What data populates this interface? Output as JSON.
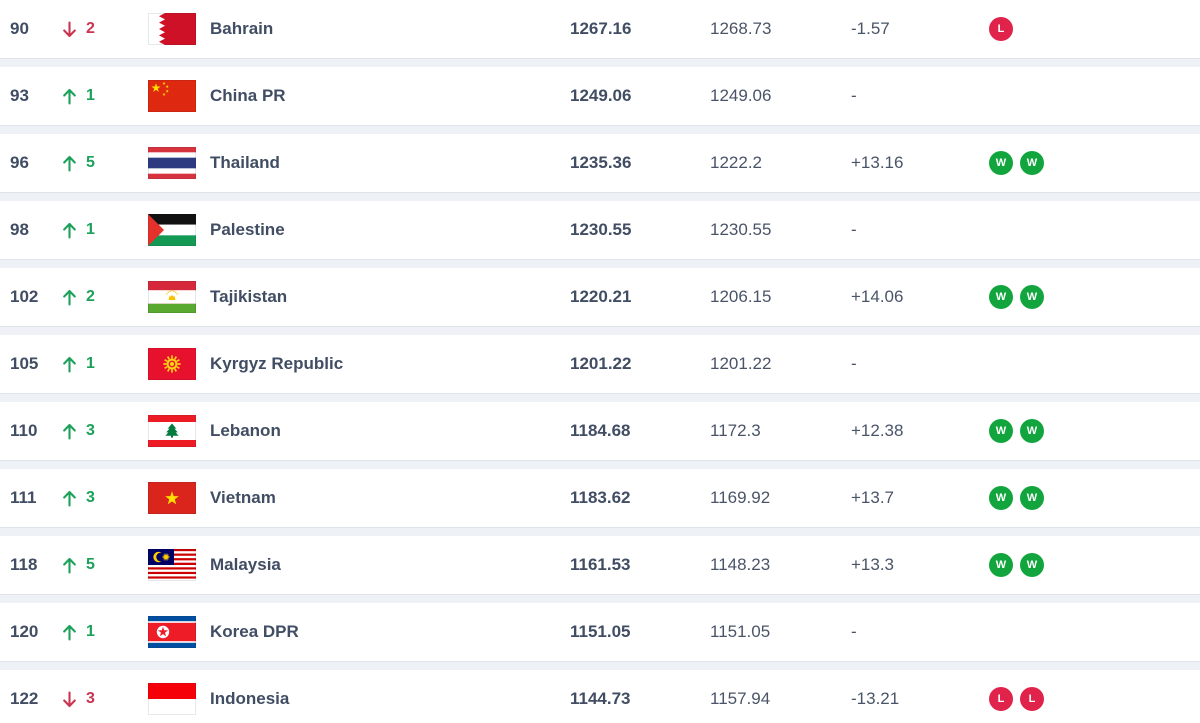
{
  "page": {
    "background_color": "#eef1f5",
    "row_background_color": "#ffffff"
  },
  "colors": {
    "text_primary": "#414d63",
    "up_green": "#1ca15b",
    "down_red": "#cb3450",
    "win_badge_green": "#12a53e",
    "loss_badge_red": "#e0234b"
  },
  "ranking_table": {
    "rows": [
      {
        "rank": "90",
        "movement_direction": "down",
        "movement": "2",
        "team": "Bahrain",
        "flag": "bahrain",
        "total_points": "1267.16",
        "previous_points": "1268.73",
        "points_change": "-1.57",
        "last_results": [
          "L"
        ]
      },
      {
        "rank": "93",
        "movement_direction": "up",
        "movement": "1",
        "team": "China PR",
        "flag": "china",
        "total_points": "1249.06",
        "previous_points": "1249.06",
        "points_change": "-",
        "last_results": []
      },
      {
        "rank": "96",
        "movement_direction": "up",
        "movement": "5",
        "team": "Thailand",
        "flag": "thailand",
        "total_points": "1235.36",
        "previous_points": "1222.2",
        "points_change": "+13.16",
        "last_results": [
          "W",
          "W"
        ]
      },
      {
        "rank": "98",
        "movement_direction": "up",
        "movement": "1",
        "team": "Palestine",
        "flag": "palestine",
        "total_points": "1230.55",
        "previous_points": "1230.55",
        "points_change": "-",
        "last_results": []
      },
      {
        "rank": "102",
        "movement_direction": "up",
        "movement": "2",
        "team": "Tajikistan",
        "flag": "tajikistan",
        "total_points": "1220.21",
        "previous_points": "1206.15",
        "points_change": "+14.06",
        "last_results": [
          "W",
          "W"
        ]
      },
      {
        "rank": "105",
        "movement_direction": "up",
        "movement": "1",
        "team": "Kyrgyz Republic",
        "flag": "kyrgyz",
        "total_points": "1201.22",
        "previous_points": "1201.22",
        "points_change": "-",
        "last_results": []
      },
      {
        "rank": "110",
        "movement_direction": "up",
        "movement": "3",
        "team": "Lebanon",
        "flag": "lebanon",
        "total_points": "1184.68",
        "previous_points": "1172.3",
        "points_change": "+12.38",
        "last_results": [
          "W",
          "W"
        ]
      },
      {
        "rank": "111",
        "movement_direction": "up",
        "movement": "3",
        "team": "Vietnam",
        "flag": "vietnam",
        "total_points": "1183.62",
        "previous_points": "1169.92",
        "points_change": "+13.7",
        "last_results": [
          "W",
          "W"
        ]
      },
      {
        "rank": "118",
        "movement_direction": "up",
        "movement": "5",
        "team": "Malaysia",
        "flag": "malaysia",
        "total_points": "1161.53",
        "previous_points": "1148.23",
        "points_change": "+13.3",
        "last_results": [
          "W",
          "W"
        ]
      },
      {
        "rank": "120",
        "movement_direction": "up",
        "movement": "1",
        "team": "Korea DPR",
        "flag": "koreadpr",
        "total_points": "1151.05",
        "previous_points": "1151.05",
        "points_change": "-",
        "last_results": []
      },
      {
        "rank": "122",
        "movement_direction": "down",
        "movement": "3",
        "team": "Indonesia",
        "flag": "indonesia",
        "total_points": "1144.73",
        "previous_points": "1157.94",
        "points_change": "-13.21",
        "last_results": [
          "L",
          "L"
        ]
      }
    ]
  }
}
